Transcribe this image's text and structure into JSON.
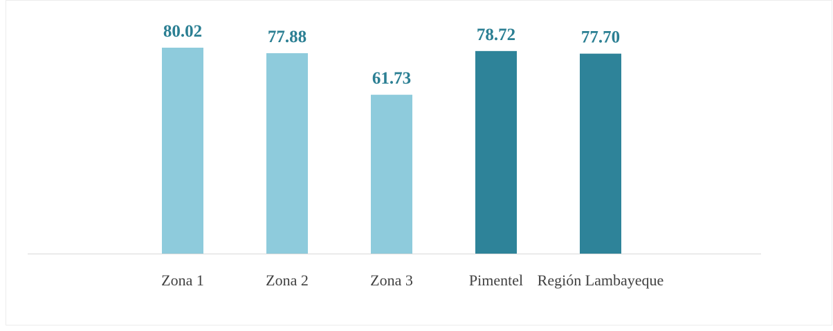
{
  "chart_data": {
    "type": "bar",
    "categories": [
      "Zona 1",
      "Zona 2",
      "Zona 3",
      "Pimentel",
      "Región Lambayeque"
    ],
    "values": [
      80.02,
      77.88,
      61.73,
      78.72,
      77.7
    ],
    "value_labels": [
      "80.02",
      "77.88",
      "61.73",
      "78.72",
      "77.70"
    ],
    "colors": [
      "#8ecbdc",
      "#8ecbdc",
      "#8ecbdc",
      "#2e8399",
      "#2e8399"
    ]
  }
}
